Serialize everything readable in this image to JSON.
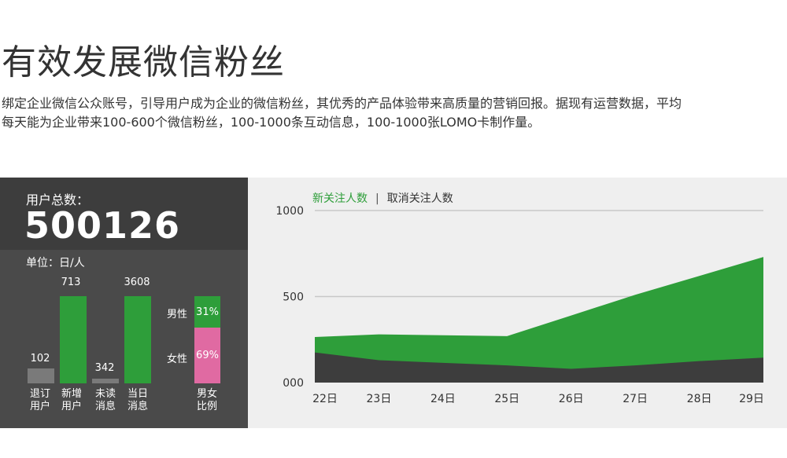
{
  "header": {
    "title": "有效发展微信粉丝",
    "desc_line1": "绑定企业微信公众账号，引导用户成为企业的微信粉丝，其优秀的产品体验带来高质量的营销回报。据现有运营数据，平均",
    "desc_line2": "每天能为企业带来100-600个微信粉丝，100-1000条互动信息，100-1000张LOMO卡制作量。"
  },
  "stats": {
    "total_label": "用户总数：",
    "total_value": "500126",
    "unit_label": "单位：日/人",
    "bars": [
      {
        "value": "102",
        "caption1": "退订",
        "caption2": "用户",
        "color": "#7a7a7a"
      },
      {
        "value": "713",
        "caption1": "新增",
        "caption2": "用户",
        "color": "#2e9e3a"
      },
      {
        "value": "342",
        "caption1": "未读",
        "caption2": "消息",
        "color": "#7a7a7a"
      },
      {
        "value": "3608",
        "caption1": "当日",
        "caption2": "消息",
        "color": "#2e9e3a"
      }
    ],
    "ratio": {
      "male_label": "男性",
      "male_value": "31%",
      "female_label": "女性",
      "female_value": "69%",
      "caption1": "男女",
      "caption2": "比例",
      "male_color": "#2e9e3a",
      "female_color": "#e06aa2"
    }
  },
  "chart_data": {
    "type": "area",
    "legend": {
      "new": "新关注人数",
      "separator": "|",
      "cancel": "取消关注人数"
    },
    "x": [
      "22日",
      "23日",
      "24日",
      "25日",
      "26日",
      "27日",
      "28日",
      "29日"
    ],
    "yticks": [
      "1000",
      "500",
      "000"
    ],
    "ylim": [
      0,
      1000
    ],
    "series": [
      {
        "name": "新关注人数",
        "color": "#2e9e3a",
        "values": [
          265,
          280,
          275,
          270,
          390,
          510,
          620,
          730
        ]
      },
      {
        "name": "取消关注人数",
        "color": "#3d3d3d",
        "values": [
          175,
          130,
          115,
          100,
          80,
          100,
          125,
          145
        ]
      }
    ],
    "grid": true
  }
}
